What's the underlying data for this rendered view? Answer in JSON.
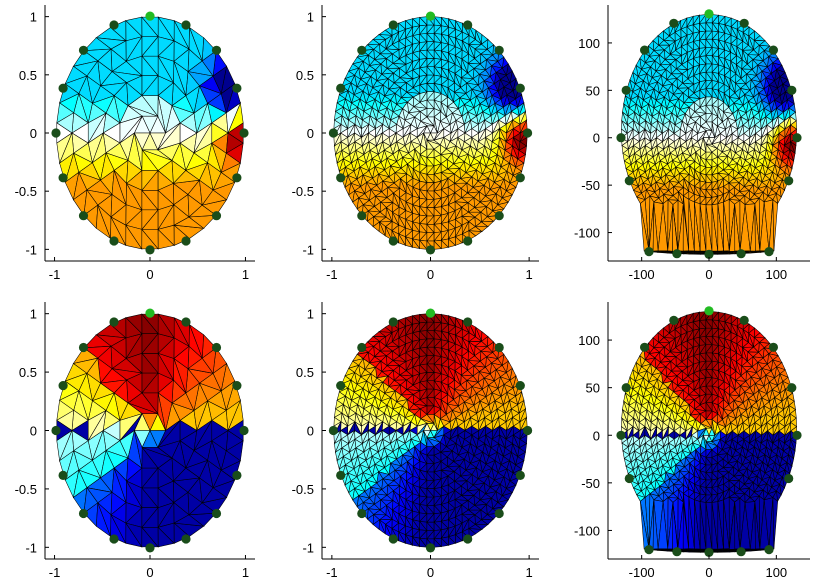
{
  "figure": {
    "background": "#ffffff",
    "layout": "2 rows x 3 columns"
  },
  "colors": {
    "electrode_dark": "#1a4d1a",
    "electrode_top": "#22bb22",
    "mesh_line": "#000000",
    "colormap": [
      "#00008f",
      "#0000ff",
      "#0080ff",
      "#00ffff",
      "#ffffff",
      "#ffff00",
      "#ff8000",
      "#ff0000",
      "#800000"
    ]
  },
  "chart_data": [
    {
      "type": "mesh",
      "name": "row1-col1",
      "row": 1,
      "col": 1,
      "mesh": "coarse",
      "field": "top-right-bottom-right dipole",
      "xlim": [
        -1.1,
        1.1
      ],
      "ylim": [
        -1.1,
        1.1
      ],
      "xticks": [
        -1,
        0,
        1
      ],
      "xtick_labels": [
        "-1",
        "0",
        "1"
      ],
      "yticks": [
        1,
        0.5,
        0,
        -0.5,
        -1
      ],
      "ytick_labels": [
        "1",
        "0.5",
        "0",
        "-0.5",
        "-1"
      ],
      "electrodes": 16
    },
    {
      "type": "mesh",
      "name": "row1-col2",
      "row": 1,
      "col": 2,
      "mesh": "fine",
      "field": "top-right-bottom-right dipole",
      "xlim": [
        -1.1,
        1.1
      ],
      "ylim": [
        -1.1,
        1.1
      ],
      "xticks": [
        -1,
        0,
        1
      ],
      "xtick_labels": [
        "-1",
        "0",
        "1"
      ],
      "yticks": [
        1,
        0.5,
        0,
        -0.5,
        -1
      ],
      "ytick_labels": [
        "1",
        "0.5",
        "0",
        "-0.5",
        "-1"
      ],
      "electrodes": 16
    },
    {
      "type": "mesh",
      "name": "row1-col3",
      "row": 1,
      "col": 3,
      "mesh": "fine-head",
      "field": "top-right-bottom-right dipole",
      "xlim": [
        -150,
        150
      ],
      "ylim": [
        -130,
        140
      ],
      "xticks": [
        -100,
        0,
        100
      ],
      "xtick_labels": [
        "-100",
        "0",
        "100"
      ],
      "yticks": [
        100,
        50,
        0,
        -50,
        -100
      ],
      "ytick_labels": [
        "100",
        "50",
        "0",
        "-50",
        "-100"
      ],
      "electrodes": 16
    },
    {
      "type": "mesh",
      "name": "row2-col1",
      "row": 2,
      "col": 1,
      "mesh": "coarse",
      "field": "upper-red lower-blue swirl",
      "xlim": [
        -1.1,
        1.1
      ],
      "ylim": [
        -1.1,
        1.1
      ],
      "xticks": [
        -1,
        0,
        1
      ],
      "xtick_labels": [
        "-1",
        "0",
        "1"
      ],
      "yticks": [
        1,
        0.5,
        0,
        -0.5,
        -1
      ],
      "ytick_labels": [
        "1",
        "0.5",
        "0",
        "-0.5",
        "-1"
      ],
      "electrodes": 16
    },
    {
      "type": "mesh",
      "name": "row2-col2",
      "row": 2,
      "col": 2,
      "mesh": "fine",
      "field": "upper-red lower-blue swirl",
      "xlim": [
        -1.1,
        1.1
      ],
      "ylim": [
        -1.1,
        1.1
      ],
      "xticks": [
        -1,
        0,
        1
      ],
      "xtick_labels": [
        "-1",
        "0",
        "1"
      ],
      "yticks": [
        1,
        0.5,
        0,
        -0.5,
        -1
      ],
      "ytick_labels": [
        "1",
        "0.5",
        "0",
        "-0.5",
        "-1"
      ],
      "electrodes": 16
    },
    {
      "type": "mesh",
      "name": "row2-col3",
      "row": 2,
      "col": 3,
      "mesh": "fine-head",
      "field": "upper-red lower-blue swirl",
      "xlim": [
        -150,
        150
      ],
      "ylim": [
        -130,
        140
      ],
      "xticks": [
        -100,
        0,
        100
      ],
      "xtick_labels": [
        "-100",
        "0",
        "100"
      ],
      "yticks": [
        100,
        50,
        0,
        -50,
        -100
      ],
      "ytick_labels": [
        "100",
        "50",
        "0",
        "-50",
        "-100"
      ],
      "electrodes": 16
    }
  ]
}
